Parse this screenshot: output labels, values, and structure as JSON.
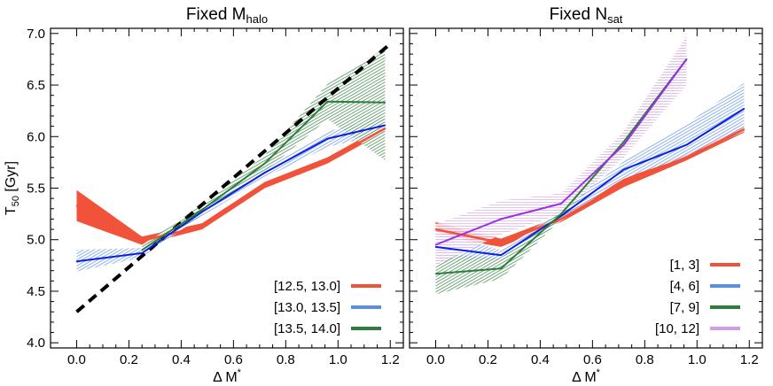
{
  "chart_data": [
    {
      "type": "line",
      "title_main": "Fixed M",
      "title_sub": "halo",
      "xlabel_main": "Δ M",
      "xlabel_sup": "*",
      "ylabel_main": "T",
      "ylabel_sub": "50",
      "ylabel_unit": " [Gyr]",
      "xlim": [
        -0.1,
        1.25
      ],
      "ylim": [
        3.95,
        7.05
      ],
      "xticks": [
        0.0,
        0.2,
        0.4,
        0.6,
        0.8,
        1.0,
        1.2
      ],
      "xtick_labels": [
        "0.0",
        "0.2",
        "0.4",
        "0.6",
        "0.8",
        "1.0",
        "1.2"
      ],
      "yticks": [
        4.0,
        4.5,
        5.0,
        5.5,
        6.0,
        6.5,
        7.0
      ],
      "ytick_labels": [
        "4.0",
        "4.5",
        "5.0",
        "5.5",
        "6.0",
        "6.5",
        "7.0"
      ],
      "reference_line": {
        "x": [
          0.0,
          1.2
        ],
        "y": [
          4.3,
          6.9
        ],
        "style": "dashed",
        "color": "#000000"
      },
      "legend_position": "bottom-right",
      "series": [
        {
          "name": "[12.5, 13.0]",
          "color": "#f0523a",
          "band_style": "solid",
          "x": [
            0.0,
            0.25,
            0.48,
            0.72,
            0.96,
            1.18
          ],
          "y": [
            5.33,
            4.99,
            5.13,
            5.53,
            5.77,
            6.08
          ],
          "lower": [
            5.18,
            4.95,
            5.1,
            5.5,
            5.74,
            6.05
          ],
          "upper": [
            5.48,
            5.03,
            5.16,
            5.56,
            5.8,
            6.11
          ]
        },
        {
          "name": "[13.0, 13.5]",
          "color": "#5a8de8",
          "line_color": "#0a1ee6",
          "band_style": "hatch",
          "x": [
            0.0,
            0.25,
            0.48,
            0.72,
            0.96,
            1.18
          ],
          "y": [
            4.79,
            4.87,
            5.27,
            5.65,
            5.98,
            6.11
          ],
          "lower": [
            4.69,
            4.83,
            5.23,
            5.6,
            5.9,
            6.03
          ],
          "upper": [
            4.9,
            4.92,
            5.31,
            5.7,
            6.05,
            6.19
          ]
        },
        {
          "name": "[13.5, 14.0]",
          "color": "#2e7d3a",
          "band_style": "hatch",
          "x": [
            0.25,
            0.48,
            0.72,
            0.96,
            1.18
          ],
          "y": [
            4.9,
            5.29,
            5.74,
            6.34,
            6.33
          ],
          "lower": [
            4.85,
            5.24,
            5.66,
            6.17,
            5.77
          ],
          "upper": [
            4.95,
            5.34,
            5.82,
            6.51,
            6.86
          ]
        }
      ]
    },
    {
      "type": "line",
      "title_main": "Fixed N",
      "title_sub": "sat",
      "xlabel_main": "Δ M",
      "xlabel_sup": "*",
      "xlim": [
        -0.1,
        1.25
      ],
      "ylim": [
        3.95,
        7.05
      ],
      "xticks": [
        0.0,
        0.2,
        0.4,
        0.6,
        0.8,
        1.0,
        1.2
      ],
      "xtick_labels": [
        "0.0",
        "0.2",
        "0.4",
        "0.6",
        "0.8",
        "1.0",
        "1.2"
      ],
      "yticks": [
        4.0,
        4.5,
        5.0,
        5.5,
        6.0,
        6.5,
        7.0
      ],
      "legend_position": "bottom-right",
      "series": [
        {
          "name": "[1, 3]",
          "color": "#f0523a",
          "band_style": "solid",
          "x": [
            0.0,
            0.25,
            0.48,
            0.72,
            0.96,
            1.18
          ],
          "y": [
            5.1,
            4.97,
            5.2,
            5.55,
            5.8,
            6.07
          ],
          "lower": [
            5.04,
            4.93,
            5.17,
            5.51,
            5.77,
            6.04
          ],
          "upper": [
            5.17,
            5.01,
            5.23,
            5.59,
            5.83,
            6.1
          ]
        },
        {
          "name": "[4, 6]",
          "color": "#5a8de8",
          "line_color": "#0a1ee6",
          "band_style": "hatch",
          "x": [
            0.0,
            0.25,
            0.48,
            0.72,
            0.96,
            1.18
          ],
          "y": [
            4.93,
            4.85,
            5.23,
            5.68,
            5.92,
            6.27
          ],
          "lower": [
            4.78,
            4.8,
            5.18,
            5.6,
            5.8,
            6.05
          ],
          "upper": [
            5.08,
            4.9,
            5.28,
            5.76,
            6.12,
            6.52
          ]
        },
        {
          "name": "[7, 9]",
          "color": "#2e7d3a",
          "band_style": "hatch",
          "x": [
            0.0,
            0.25,
            0.48,
            0.72,
            0.96
          ],
          "y": [
            4.67,
            4.72,
            5.25,
            5.95,
            6.75
          ],
          "lower": [
            4.47,
            4.62,
            5.2,
            5.85,
            6.55
          ],
          "upper": [
            4.87,
            4.82,
            5.3,
            6.05,
            6.95
          ]
        },
        {
          "name": "[10, 12]",
          "color": "#d79ae6",
          "line_color": "#9b30e0",
          "band_style": "hatch",
          "x": [
            0.0,
            0.25,
            0.48,
            0.72,
            0.96
          ],
          "y": [
            4.95,
            5.2,
            5.35,
            5.92,
            6.75
          ],
          "lower": [
            4.75,
            5.05,
            5.25,
            5.8,
            6.5
          ],
          "upper": [
            5.15,
            5.38,
            5.45,
            6.05,
            6.98
          ]
        }
      ]
    }
  ]
}
